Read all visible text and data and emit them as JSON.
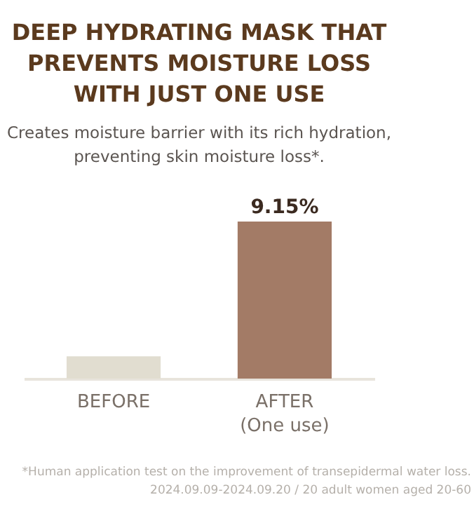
{
  "chart_data": {
    "type": "bar",
    "title": "DEEP HYDRATING MASK THAT\nPREVENTS MOISTURE LOSS\nWITH JUST ONE USE",
    "subtitle": "Creates moisture barrier with its rich hydration,\npreventing skin moisture loss*.",
    "categories": [
      "BEFORE",
      "AFTER\n(One use)"
    ],
    "values": [
      1.3,
      9.15
    ],
    "colors": [
      "#e1ddd0",
      "#a37b66"
    ],
    "value_labels": [
      null,
      "9.15%"
    ],
    "annotations": [
      "*Human application test on the improvement of transepidermal water loss.",
      "2024.09.09-2024.09.20 / 20 adult women aged 20-60"
    ]
  }
}
